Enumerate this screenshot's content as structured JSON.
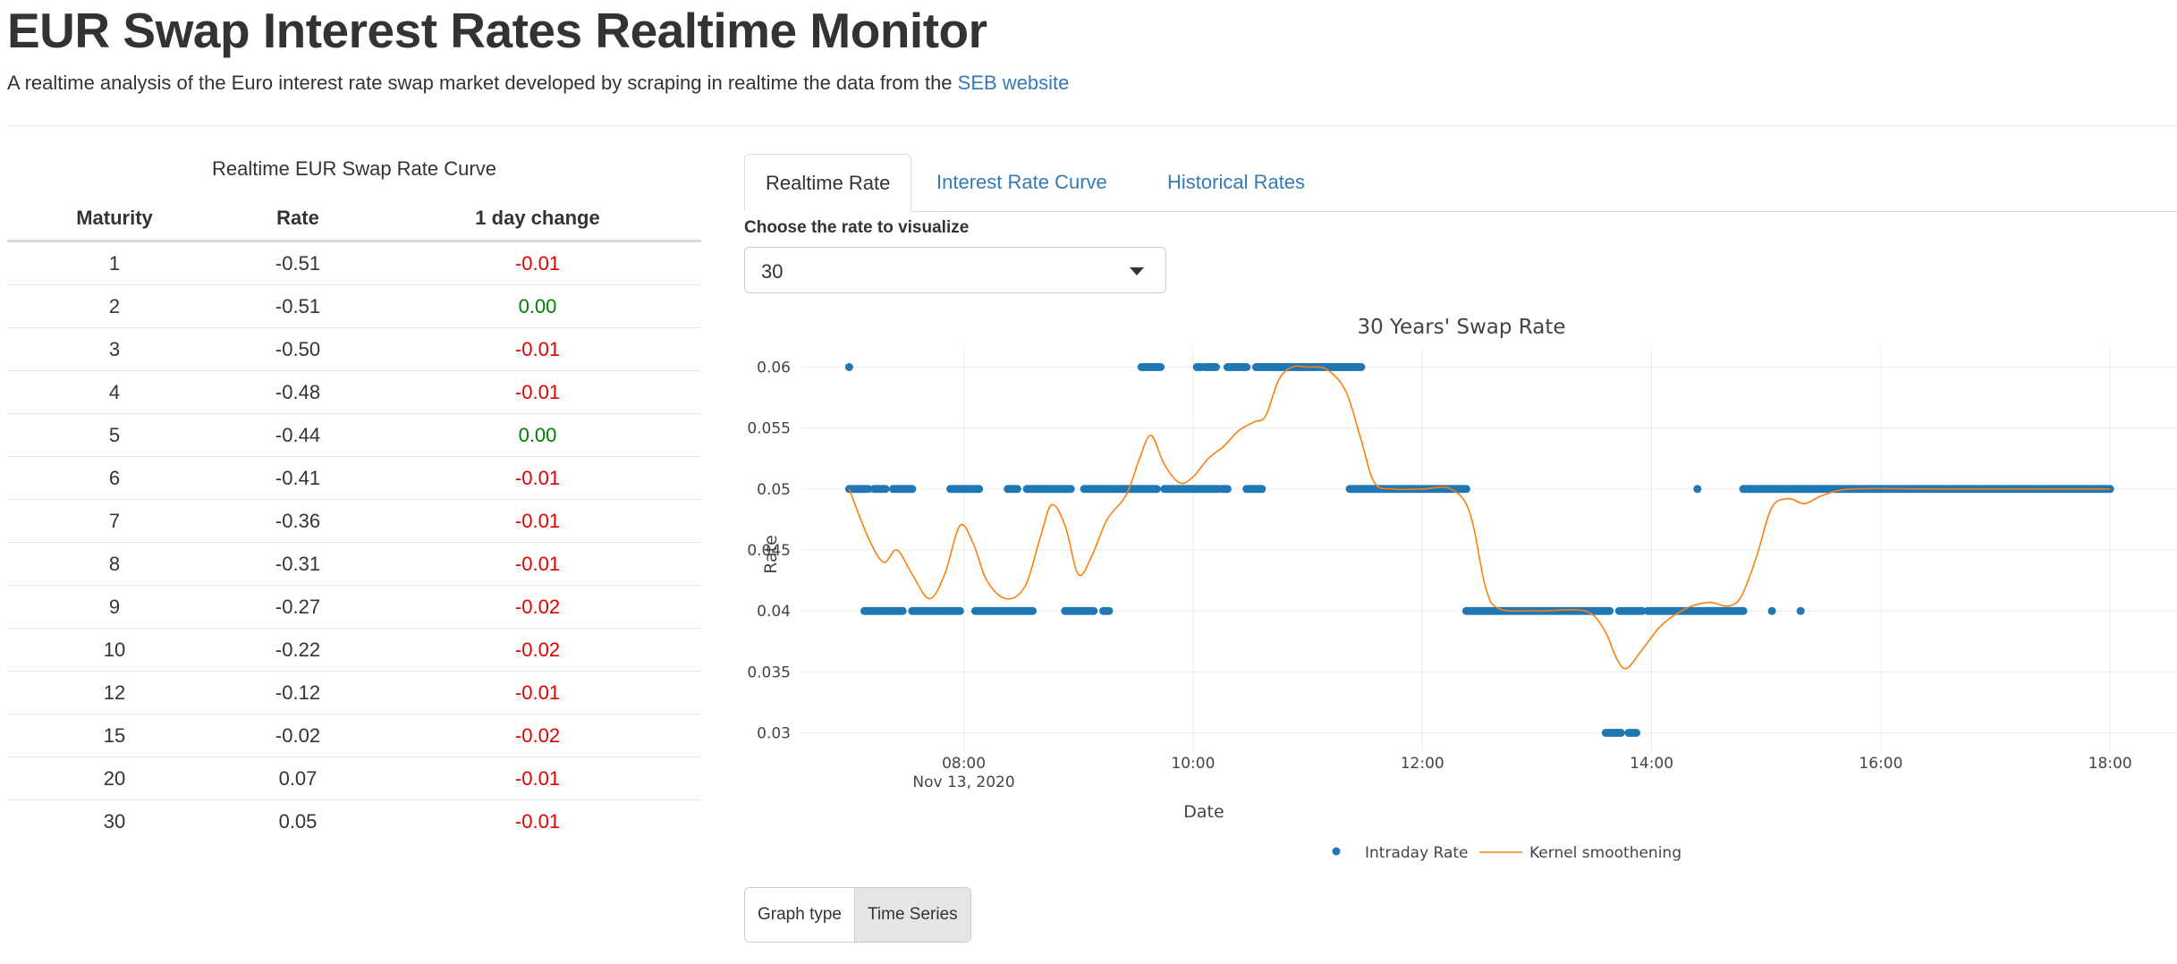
{
  "header": {
    "title": "EUR Swap Interest Rates Realtime Monitor",
    "subtitle": "A realtime analysis of the Euro interest rate swap market developed by scraping in realtime the data from the",
    "link_text": "SEB website"
  },
  "table": {
    "caption": "Realtime EUR Swap Rate Curve",
    "headers": [
      "Maturity",
      "Rate",
      "1 day change"
    ],
    "rows": [
      {
        "maturity": "1",
        "rate": "-0.51",
        "change": "-0.01"
      },
      {
        "maturity": "2",
        "rate": "-0.51",
        "change": "0.00"
      },
      {
        "maturity": "3",
        "rate": "-0.50",
        "change": "-0.01"
      },
      {
        "maturity": "4",
        "rate": "-0.48",
        "change": "-0.01"
      },
      {
        "maturity": "5",
        "rate": "-0.44",
        "change": "0.00"
      },
      {
        "maturity": "6",
        "rate": "-0.41",
        "change": "-0.01"
      },
      {
        "maturity": "7",
        "rate": "-0.36",
        "change": "-0.01"
      },
      {
        "maturity": "8",
        "rate": "-0.31",
        "change": "-0.01"
      },
      {
        "maturity": "9",
        "rate": "-0.27",
        "change": "-0.02"
      },
      {
        "maturity": "10",
        "rate": "-0.22",
        "change": "-0.02"
      },
      {
        "maturity": "12",
        "rate": "-0.12",
        "change": "-0.01"
      },
      {
        "maturity": "15",
        "rate": "-0.02",
        "change": "-0.02"
      },
      {
        "maturity": "20",
        "rate": "0.07",
        "change": "-0.01"
      },
      {
        "maturity": "30",
        "rate": "0.05",
        "change": "-0.01"
      }
    ],
    "colors": {
      "negative": "#e00000",
      "zero": "#008000"
    }
  },
  "tabs": [
    {
      "label": "Realtime Rate",
      "active": true
    },
    {
      "label": "Interest Rate Curve",
      "active": false
    },
    {
      "label": "Historical Rates",
      "active": false
    }
  ],
  "select": {
    "label": "Choose the rate to visualize",
    "value": "30"
  },
  "chart_data": {
    "type": "scatter",
    "title": "30 Years' Swap Rate",
    "xlabel": "Date",
    "ylabel": "Rate",
    "x_range": [
      "06:35",
      "18:35"
    ],
    "ylim": [
      0.0285,
      0.0615
    ],
    "x_ticks": [
      "08:00",
      "10:00",
      "12:00",
      "14:00",
      "16:00",
      "18:00"
    ],
    "x_date_label": "Nov 13, 2020",
    "y_ticks": [
      0.03,
      0.035,
      0.04,
      0.045,
      0.05,
      0.055,
      0.06
    ],
    "y_tick_labels": [
      "0.03",
      "0.035",
      "0.04",
      "0.045",
      "0.05",
      "0.055",
      "0.06"
    ],
    "grid": true,
    "legend": "bottom-center",
    "colors": {
      "points": "#1f77b4",
      "smooth": "#ff7f0e"
    },
    "series": [
      {
        "name": "Intraday Rate",
        "kind": "points",
        "segments": [
          {
            "y": 0.06,
            "from": "07:00",
            "to": "07:00"
          },
          {
            "y": 0.05,
            "from": "07:00",
            "to": "07:10"
          },
          {
            "y": 0.05,
            "from": "07:13",
            "to": "07:19"
          },
          {
            "y": 0.05,
            "from": "07:23",
            "to": "07:33"
          },
          {
            "y": 0.04,
            "from": "07:08",
            "to": "07:28"
          },
          {
            "y": 0.04,
            "from": "07:33",
            "to": "07:58"
          },
          {
            "y": 0.05,
            "from": "07:53",
            "to": "08:08"
          },
          {
            "y": 0.04,
            "from": "08:06",
            "to": "08:36"
          },
          {
            "y": 0.05,
            "from": "08:23",
            "to": "08:28"
          },
          {
            "y": 0.05,
            "from": "08:33",
            "to": "08:56"
          },
          {
            "y": 0.04,
            "from": "08:53",
            "to": "09:08"
          },
          {
            "y": 0.04,
            "from": "09:13",
            "to": "09:16"
          },
          {
            "y": 0.05,
            "from": "09:03",
            "to": "09:41"
          },
          {
            "y": 0.06,
            "from": "09:33",
            "to": "09:43"
          },
          {
            "y": 0.05,
            "from": "09:45",
            "to": "10:13"
          },
          {
            "y": 0.06,
            "from": "10:02",
            "to": "10:04"
          },
          {
            "y": 0.06,
            "from": "10:06",
            "to": "10:12"
          },
          {
            "y": 0.06,
            "from": "10:18",
            "to": "10:28"
          },
          {
            "y": 0.05,
            "from": "10:15",
            "to": "10:18"
          },
          {
            "y": 0.05,
            "from": "10:28",
            "to": "10:36"
          },
          {
            "y": 0.06,
            "from": "10:33",
            "to": "11:28"
          },
          {
            "y": 0.05,
            "from": "11:22",
            "to": "12:23"
          },
          {
            "y": 0.04,
            "from": "12:23",
            "to": "13:38"
          },
          {
            "y": 0.03,
            "from": "13:36",
            "to": "13:44"
          },
          {
            "y": 0.03,
            "from": "13:48",
            "to": "13:52"
          },
          {
            "y": 0.04,
            "from": "13:43",
            "to": "13:55"
          },
          {
            "y": 0.04,
            "from": "13:58",
            "to": "14:48"
          },
          {
            "y": 0.05,
            "from": "14:24",
            "to": "14:24"
          },
          {
            "y": 0.04,
            "from": "15:03",
            "to": "15:03"
          },
          {
            "y": 0.04,
            "from": "15:18",
            "to": "15:18"
          },
          {
            "y": 0.05,
            "from": "14:48",
            "to": "18:00"
          }
        ]
      },
      {
        "name": "Kernel smoothening",
        "kind": "line",
        "points": [
          [
            "07:00",
            0.05
          ],
          [
            "07:10",
            0.046
          ],
          [
            "07:18",
            0.044
          ],
          [
            "07:25",
            0.045
          ],
          [
            "07:33",
            0.043
          ],
          [
            "07:42",
            0.041
          ],
          [
            "07:50",
            0.043
          ],
          [
            "07:58",
            0.047
          ],
          [
            "08:05",
            0.0455
          ],
          [
            "08:12",
            0.0425
          ],
          [
            "08:22",
            0.041
          ],
          [
            "08:32",
            0.042
          ],
          [
            "08:40",
            0.046
          ],
          [
            "08:46",
            0.0487
          ],
          [
            "08:53",
            0.047
          ],
          [
            "09:00",
            0.043
          ],
          [
            "09:07",
            0.0445
          ],
          [
            "09:15",
            0.0475
          ],
          [
            "09:25",
            0.0495
          ],
          [
            "09:32",
            0.0525
          ],
          [
            "09:38",
            0.0544
          ],
          [
            "09:45",
            0.052
          ],
          [
            "09:53",
            0.0505
          ],
          [
            "10:00",
            0.051
          ],
          [
            "10:08",
            0.0525
          ],
          [
            "10:16",
            0.0535
          ],
          [
            "10:24",
            0.0548
          ],
          [
            "10:32",
            0.0555
          ],
          [
            "10:38",
            0.056
          ],
          [
            "10:45",
            0.059
          ],
          [
            "10:52",
            0.06
          ],
          [
            "11:00",
            0.06
          ],
          [
            "11:10",
            0.0598
          ],
          [
            "11:20",
            0.058
          ],
          [
            "11:28",
            0.054
          ],
          [
            "11:35",
            0.0505
          ],
          [
            "11:45",
            0.05
          ],
          [
            "12:00",
            0.05
          ],
          [
            "12:15",
            0.05
          ],
          [
            "12:25",
            0.048
          ],
          [
            "12:33",
            0.042
          ],
          [
            "12:40",
            0.0402
          ],
          [
            "13:00",
            0.04
          ],
          [
            "13:25",
            0.04
          ],
          [
            "13:35",
            0.0385
          ],
          [
            "13:42",
            0.036
          ],
          [
            "13:47",
            0.0353
          ],
          [
            "13:55",
            0.0368
          ],
          [
            "14:05",
            0.0388
          ],
          [
            "14:18",
            0.0402
          ],
          [
            "14:30",
            0.0407
          ],
          [
            "14:40",
            0.0404
          ],
          [
            "14:47",
            0.0412
          ],
          [
            "14:55",
            0.0445
          ],
          [
            "15:03",
            0.0485
          ],
          [
            "15:12",
            0.0492
          ],
          [
            "15:20",
            0.0488
          ],
          [
            "15:30",
            0.0495
          ],
          [
            "15:45",
            0.05
          ],
          [
            "16:30",
            0.05
          ],
          [
            "18:00",
            0.05
          ]
        ]
      }
    ]
  },
  "graph_type": {
    "label": "Graph type",
    "selected": "Time Series"
  }
}
